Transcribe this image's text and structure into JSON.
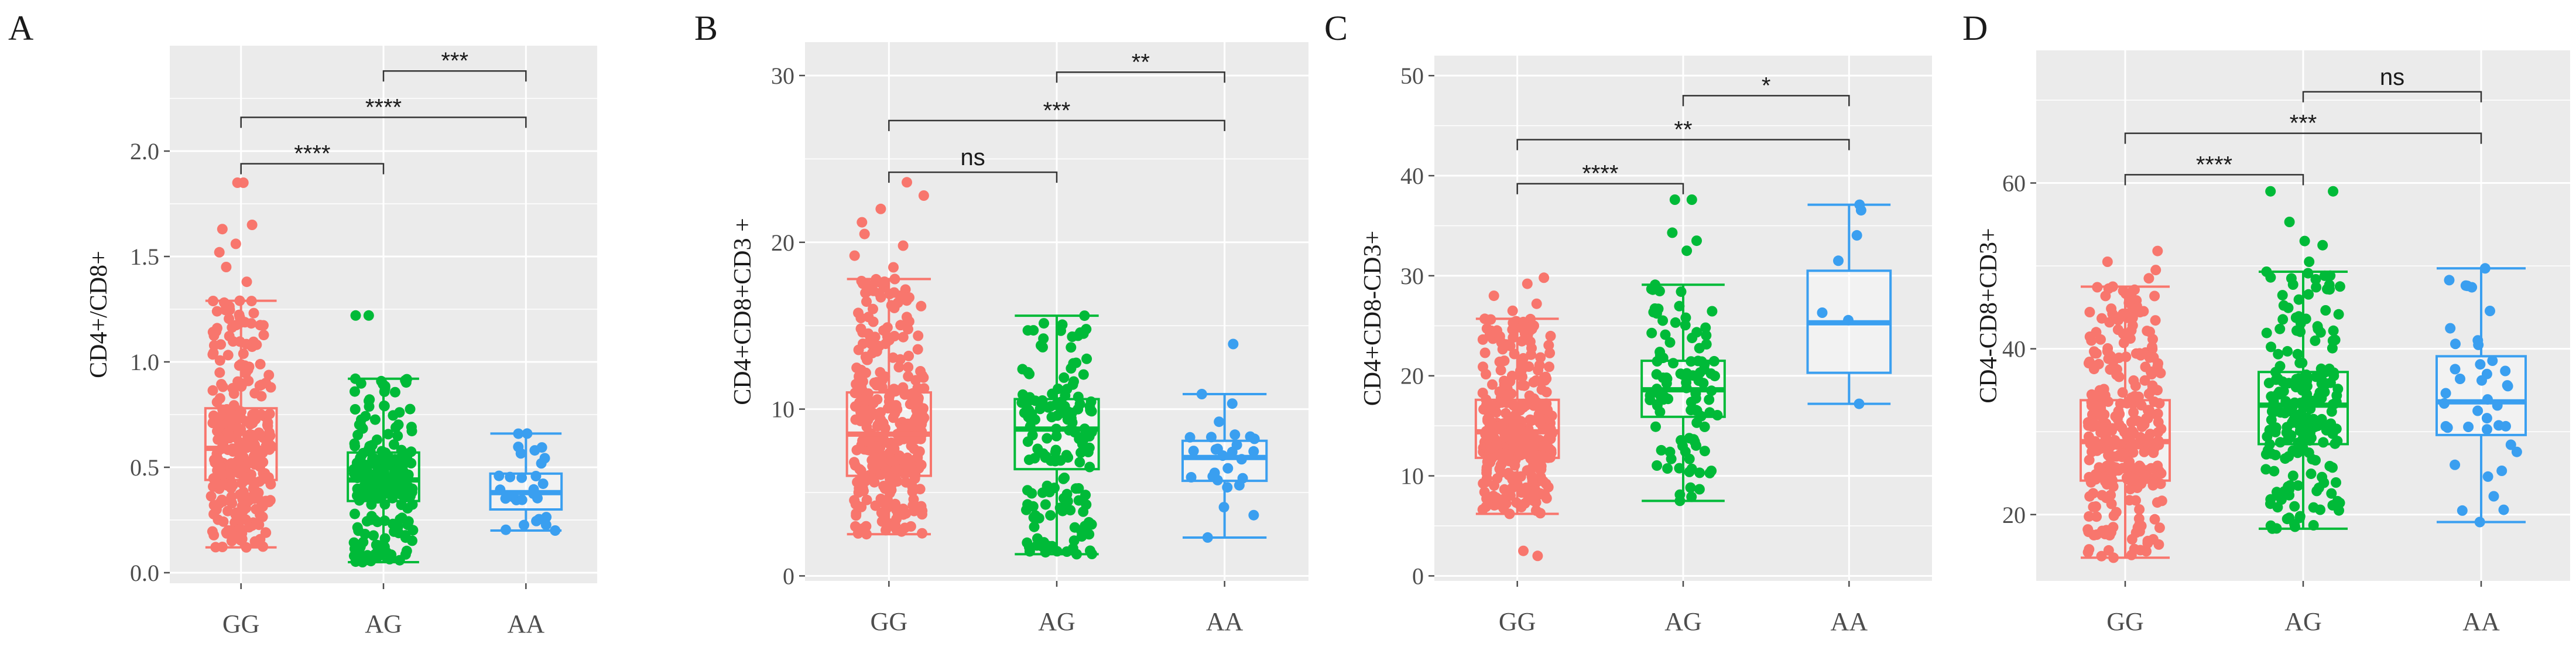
{
  "colors": {
    "panel_bg": "#ebebeb",
    "gridline": "#ffffff",
    "GG": "#f8766d",
    "AG": "#00ba38",
    "AA": "#3a9ff0",
    "bracket": "#333333",
    "tick": "#4d4d4d"
  },
  "chart_data": [
    {
      "type": "box",
      "panel_letter": "A",
      "ylabel": "CD4+/CD8+",
      "ylim": [
        -0.05,
        2.5
      ],
      "yticks": [
        0.0,
        0.5,
        1.0,
        1.5,
        2.0
      ],
      "ytick_labels": [
        "0.0",
        "0.5",
        "1.0",
        "1.5",
        "2.0"
      ],
      "categories": [
        "GG",
        "AG",
        "AA"
      ],
      "boxes": [
        {
          "group": "GG",
          "n": 300,
          "whisker_low": 0.12,
          "q1": 0.44,
          "median": 0.59,
          "q3": 0.78,
          "whisker_high": 1.29,
          "outliers": [
            1.38,
            1.45,
            1.52,
            1.56,
            1.63,
            1.65,
            1.85,
            1.85
          ]
        },
        {
          "group": "AG",
          "n": 220,
          "whisker_low": 0.05,
          "q1": 0.34,
          "median": 0.44,
          "q3": 0.57,
          "whisker_high": 0.92,
          "outliers": [
            1.22,
            1.22
          ]
        },
        {
          "group": "AA",
          "n": 28,
          "whisker_low": 0.2,
          "q1": 0.3,
          "median": 0.38,
          "q3": 0.47,
          "whisker_high": 0.66,
          "outliers": []
        }
      ],
      "comparisons": [
        {
          "from": "GG",
          "to": "AG",
          "label": "****",
          "y": 1.94
        },
        {
          "from": "GG",
          "to": "AA",
          "label": "****",
          "y": 2.16
        },
        {
          "from": "AG",
          "to": "AA",
          "label": "***",
          "y": 2.38
        }
      ]
    },
    {
      "type": "box",
      "panel_letter": "B",
      "ylabel": "CD4+CD8+CD3 +",
      "ylim": [
        -0.3,
        32
      ],
      "yticks": [
        0,
        10,
        20,
        30
      ],
      "ytick_labels": [
        "0",
        "10",
        "20",
        "30"
      ],
      "categories": [
        "GG",
        "AG",
        "AA"
      ],
      "boxes": [
        {
          "group": "GG",
          "n": 340,
          "whisker_low": 2.5,
          "q1": 6.0,
          "median": 8.5,
          "q3": 11.0,
          "whisker_high": 17.8,
          "outliers": [
            18.5,
            19.2,
            19.8,
            20.5,
            21.2,
            22.0,
            22.8,
            23.6
          ]
        },
        {
          "group": "AG",
          "n": 160,
          "whisker_low": 1.3,
          "q1": 6.4,
          "median": 8.8,
          "q3": 10.6,
          "whisker_high": 15.6,
          "outliers": []
        },
        {
          "group": "AA",
          "n": 28,
          "whisker_low": 2.3,
          "q1": 5.7,
          "median": 7.1,
          "q3": 8.1,
          "whisker_high": 10.9,
          "outliers": [
            13.9
          ]
        }
      ],
      "comparisons": [
        {
          "from": "GG",
          "to": "AG",
          "label": "ns",
          "y": 24.2
        },
        {
          "from": "GG",
          "to": "AA",
          "label": "***",
          "y": 27.3
        },
        {
          "from": "AG",
          "to": "AA",
          "label": "**",
          "y": 30.2
        }
      ]
    },
    {
      "type": "box",
      "panel_letter": "C",
      "ylabel": "CD4+CD8-CD3+",
      "ylim": [
        -0.5,
        52
      ],
      "yticks": [
        0,
        10,
        20,
        30,
        40,
        50
      ],
      "ytick_labels": [
        "0",
        "10",
        "20",
        "30",
        "40",
        "50"
      ],
      "categories": [
        "GG",
        "AG",
        "AA"
      ],
      "boxes": [
        {
          "group": "GG",
          "n": 330,
          "whisker_low": 6.2,
          "q1": 11.8,
          "median": 14.4,
          "q3": 17.6,
          "whisker_high": 25.7,
          "outliers": [
            2.0,
            2.5,
            26.5,
            27.2,
            28.0,
            29.2,
            29.8
          ]
        },
        {
          "group": "AG",
          "n": 110,
          "whisker_low": 7.5,
          "q1": 15.9,
          "median": 18.6,
          "q3": 21.5,
          "whisker_high": 29.1,
          "outliers": [
            32.5,
            33.5,
            34.3,
            37.6,
            37.6
          ]
        },
        {
          "group": "AA",
          "n": 7,
          "whisker_low": 17.2,
          "q1": 20.3,
          "median": 25.3,
          "q3": 30.5,
          "whisker_high": 37.1,
          "outliers": []
        }
      ],
      "comparisons": [
        {
          "from": "GG",
          "to": "AG",
          "label": "****",
          "y": 39.2
        },
        {
          "from": "GG",
          "to": "AA",
          "label": "**",
          "y": 43.6
        },
        {
          "from": "AG",
          "to": "AA",
          "label": "*",
          "y": 48.0
        }
      ]
    },
    {
      "type": "box",
      "panel_letter": "D",
      "ylabel": "CD4-CD8+CD3+",
      "ylim": [
        12,
        76
      ],
      "yticks": [
        20,
        40,
        60
      ],
      "ytick_labels": [
        "20",
        "40",
        "60"
      ],
      "categories": [
        "GG",
        "AG",
        "AA"
      ],
      "boxes": [
        {
          "group": "GG",
          "n": 320,
          "whisker_low": 14.8,
          "q1": 24.1,
          "median": 28.8,
          "q3": 33.8,
          "whisker_high": 47.5,
          "outliers": [
            48.5,
            49.5,
            50.5,
            51.8
          ]
        },
        {
          "group": "AG",
          "n": 220,
          "whisker_low": 18.3,
          "q1": 28.5,
          "median": 33.2,
          "q3": 37.2,
          "whisker_high": 49.3,
          "outliers": [
            50.5,
            52.5,
            53.0,
            55.3,
            59.0,
            59.0
          ]
        },
        {
          "group": "AA",
          "n": 40,
          "whisker_low": 19.1,
          "q1": 29.6,
          "median": 33.6,
          "q3": 39.1,
          "whisker_high": 49.7,
          "outliers": []
        }
      ],
      "comparisons": [
        {
          "from": "GG",
          "to": "AG",
          "label": "****",
          "y": 61.0
        },
        {
          "from": "GG",
          "to": "AA",
          "label": "***",
          "y": 66.0
        },
        {
          "from": "AG",
          "to": "AA",
          "label": "ns",
          "y": 71.0
        }
      ]
    }
  ]
}
